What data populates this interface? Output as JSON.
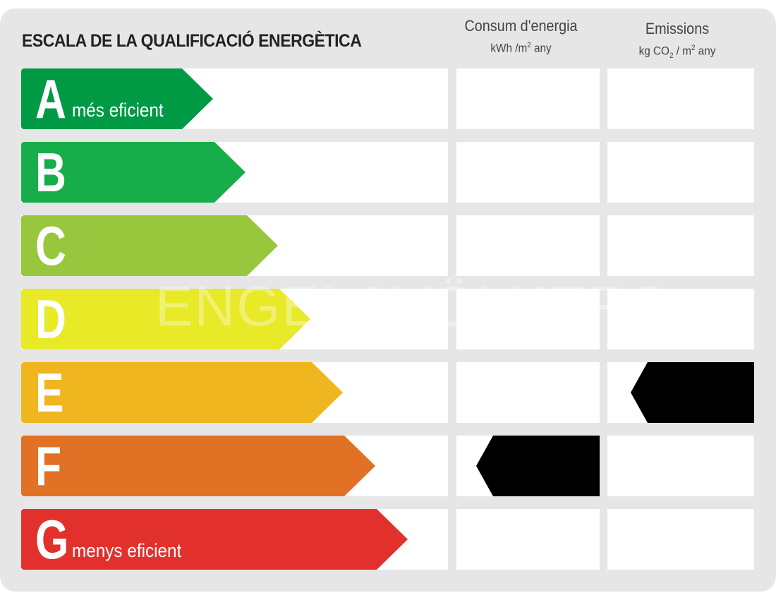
{
  "title": "ESCALA DE LA QUALIFICACIÓ ENERGÈTICA",
  "columns": {
    "consumption": {
      "title": "Consum d'energia",
      "unit_pre": "kWh /m",
      "unit_sup": "2",
      "unit_post": " any"
    },
    "emissions": {
      "title": "Emissions",
      "unit_pre": "kg CO",
      "unit_sub": "2",
      "unit_mid": " / m",
      "unit_sup": "2",
      "unit_post": " any"
    }
  },
  "rows": [
    {
      "letter": "A",
      "label": "més eficient",
      "color": "#009a45"
    },
    {
      "letter": "B",
      "label": "",
      "color": "#17ad4a"
    },
    {
      "letter": "C",
      "label": "",
      "color": "#98c73d"
    },
    {
      "letter": "D",
      "label": "",
      "color": "#e8e927"
    },
    {
      "letter": "E",
      "label": "",
      "color": "#f0b61f"
    },
    {
      "letter": "F",
      "label": "",
      "color": "#e07125"
    },
    {
      "letter": "G",
      "label": "menys eficient",
      "color": "#e2312d"
    }
  ],
  "rating": {
    "consumption": "F",
    "emissions": "E"
  },
  "marker_color": "#000000",
  "watermark": "ENGEL&VÖLKERS"
}
